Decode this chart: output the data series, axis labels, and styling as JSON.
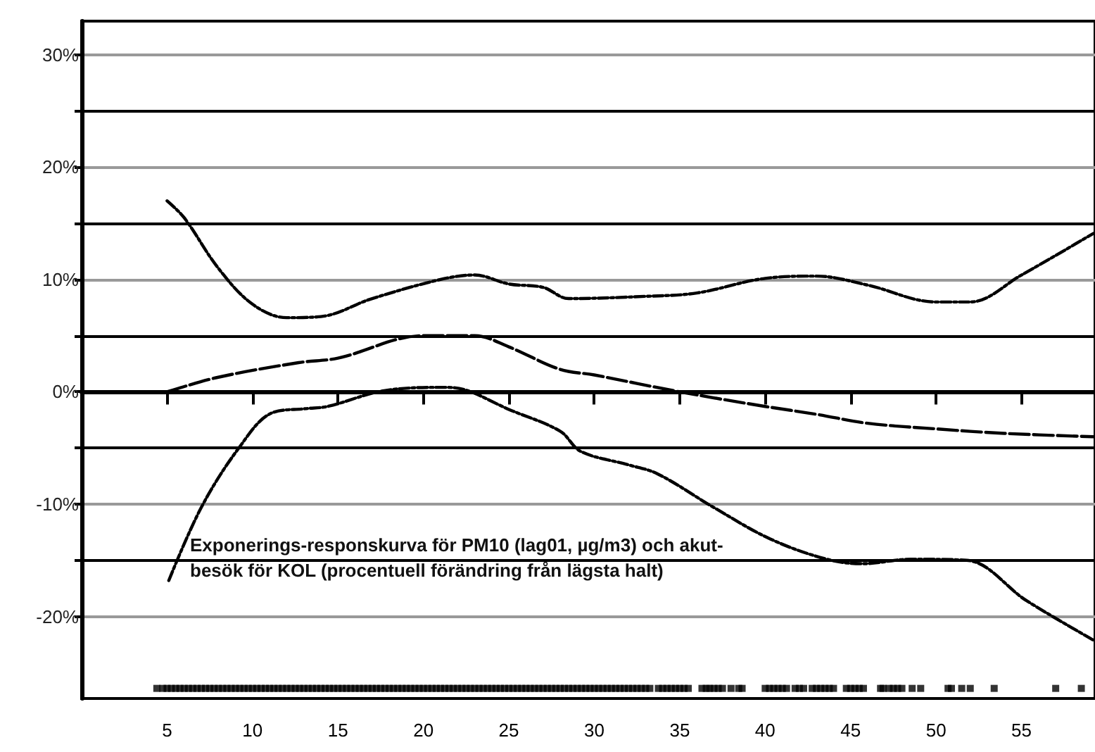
{
  "chart_data": {
    "type": "line",
    "annotations": [
      "Exponerings-responskurva för PM10 (lag01, µg/m3) och akut-\nbesök för KOL (procentuell förändring från lägsta halt)"
    ],
    "xlim": [
      0,
      59.3
    ],
    "xticks": [
      5,
      10,
      15,
      20,
      25,
      30,
      35,
      40,
      45,
      50,
      55
    ],
    "ylim": [
      -27.3,
      33
    ],
    "yticks": [
      {
        "value": -20,
        "label": "-20%"
      },
      {
        "value": -15,
        "label": null
      },
      {
        "value": -10,
        "label": "-10%"
      },
      {
        "value": -5,
        "label": null
      },
      {
        "value": 0,
        "label": "0%"
      },
      {
        "value": 5,
        "label": null
      },
      {
        "value": 10,
        "label": "10%"
      },
      {
        "value": 15,
        "label": null
      },
      {
        "value": 20,
        "label": "20%"
      },
      {
        "value": 25,
        "label": null
      },
      {
        "value": 30,
        "label": "30%"
      }
    ],
    "grid": "y",
    "marker": "none",
    "series": [
      {
        "color": "#000000",
        "line_style": "dashed",
        "x": [
          5,
          8,
          12.7,
          15,
          20,
          23,
          25,
          28,
          30,
          35,
          40,
          43,
          46,
          50,
          54,
          59.2
        ],
        "values": [
          0,
          1.3,
          2.6,
          3,
          5,
          5,
          4,
          2,
          1.5,
          0,
          -1.3,
          -2,
          -2.8,
          -3.3,
          -3.7,
          -4
        ]
      },
      {
        "color": "#000000",
        "line_style": "dotted",
        "x": [
          5,
          6,
          8,
          10,
          12,
          14,
          17,
          21,
          23,
          25,
          27,
          28.5,
          33,
          36,
          40,
          43,
          46,
          50,
          52,
          55,
          59.2
        ],
        "values": [
          17,
          15.5,
          11,
          7.8,
          6.6,
          6.7,
          8.3,
          10,
          10.4,
          9.6,
          9.3,
          8.3,
          8.5,
          8.8,
          10.1,
          10.3,
          9.5,
          8,
          8,
          10.4,
          14.1
        ]
      },
      {
        "color": "#000000",
        "line_style": "dotted",
        "x": [
          5.1,
          7,
          9.2,
          11.1,
          13.1,
          14.4,
          17.7,
          21.3,
          22.6,
          24.9,
          28,
          29.2,
          32,
          33.7,
          37,
          40.3,
          43.6,
          45.7,
          48.5,
          51.8,
          55.3,
          59.2
        ],
        "values": [
          -16.8,
          -10.3,
          -5,
          -1.9,
          -1.5,
          -1.3,
          0.1,
          0.4,
          0.1,
          -1.5,
          -3.5,
          -5.3,
          -6.5,
          -7.3,
          -10.3,
          -13.1,
          -14.9,
          -15.3,
          -14.9,
          -15,
          -18.6,
          -22.1
        ]
      },
      {
        "type": "scatter",
        "marker": "square",
        "color": "#000000",
        "x": [
          4.4,
          4.75,
          5,
          5.25,
          5.5,
          5.75,
          6,
          6.25,
          6.5,
          6.75,
          7,
          7.25,
          7.5,
          7.75,
          8,
          8.25,
          8.5,
          8.75,
          9,
          9.25,
          9.5,
          9.75,
          10,
          10.25,
          10.5,
          10.75,
          11,
          11.25,
          11.5,
          11.75,
          12,
          12.25,
          12.5,
          12.75,
          13,
          13.25,
          13.5,
          13.75,
          14,
          14.25,
          14.5,
          14.75,
          15,
          15.25,
          15.5,
          15.75,
          16,
          16.25,
          16.5,
          16.75,
          17,
          17.25,
          17.5,
          17.75,
          18,
          18.25,
          18.5,
          18.75,
          19,
          19.25,
          19.5,
          19.75,
          20,
          20.25,
          20.5,
          20.75,
          21,
          21.25,
          21.5,
          21.75,
          22,
          22.25,
          22.5,
          22.75,
          23,
          23.25,
          23.5,
          23.75,
          24,
          24.25,
          24.5,
          24.75,
          25,
          25.25,
          25.5,
          25.75,
          26,
          26.25,
          26.5,
          26.75,
          27,
          27.25,
          27.5,
          27.75,
          28,
          28.25,
          28.5,
          28.75,
          29,
          29.25,
          29.5,
          29.75,
          30,
          30.25,
          30.5,
          30.75,
          31,
          31.25,
          31.5,
          31.75,
          32,
          32.25,
          32.5,
          32.75,
          33,
          33.25,
          33.75,
          34,
          34.25,
          34.5,
          34.75,
          35,
          35.25,
          35.5,
          36.3,
          36.55,
          36.75,
          37,
          37.25,
          37.5,
          38,
          38.45,
          38.65,
          40,
          40.25,
          40.5,
          40.75,
          41,
          41.25,
          41.75,
          42,
          42.25,
          42.75,
          43,
          43.25,
          43.5,
          43.75,
          44,
          44.75,
          45,
          45.25,
          45.5,
          45.75,
          46.75,
          46.9,
          47.25,
          47.5,
          47.75,
          48,
          48.6,
          49.1,
          50.7,
          50.9,
          51.5,
          52,
          53.4,
          57,
          58.5
        ],
        "values": [
          -26.4,
          -26.4,
          -26.4,
          -26.4,
          -26.4,
          -26.4,
          -26.4,
          -26.4,
          -26.4,
          -26.4,
          -26.4,
          -26.4,
          -26.4,
          -26.4,
          -26.4,
          -26.4,
          -26.4,
          -26.4,
          -26.4,
          -26.4,
          -26.4,
          -26.4,
          -26.4,
          -26.4,
          -26.4,
          -26.4,
          -26.4,
          -26.4,
          -26.4,
          -26.4,
          -26.4,
          -26.4,
          -26.4,
          -26.4,
          -26.4,
          -26.4,
          -26.4,
          -26.4,
          -26.4,
          -26.4,
          -26.4,
          -26.4,
          -26.4,
          -26.4,
          -26.4,
          -26.4,
          -26.4,
          -26.4,
          -26.4,
          -26.4,
          -26.4,
          -26.4,
          -26.4,
          -26.4,
          -26.4,
          -26.4,
          -26.4,
          -26.4,
          -26.4,
          -26.4,
          -26.4,
          -26.4,
          -26.4,
          -26.4,
          -26.4,
          -26.4,
          -26.4,
          -26.4,
          -26.4,
          -26.4,
          -26.4,
          -26.4,
          -26.4,
          -26.4,
          -26.4,
          -26.4,
          -26.4,
          -26.4,
          -26.4,
          -26.4,
          -26.4,
          -26.4,
          -26.4,
          -26.4,
          -26.4,
          -26.4,
          -26.4,
          -26.4,
          -26.4,
          -26.4,
          -26.4,
          -26.4,
          -26.4,
          -26.4,
          -26.4,
          -26.4,
          -26.4,
          -26.4,
          -26.4,
          -26.4,
          -26.4,
          -26.4,
          -26.4,
          -26.4,
          -26.4,
          -26.4,
          -26.4,
          -26.4,
          -26.4,
          -26.4,
          -26.4,
          -26.4,
          -26.4,
          -26.4,
          -26.4,
          -26.4,
          -26.4,
          -26.4,
          -26.4,
          -26.4,
          -26.4,
          -26.4,
          -26.4,
          -26.4,
          -26.4,
          -26.4,
          -26.4,
          -26.4,
          -26.4,
          -26.4,
          -26.4,
          -26.4,
          -26.4,
          -26.4,
          -26.4,
          -26.4,
          -26.4,
          -26.4,
          -26.4,
          -26.4,
          -26.4,
          -26.4,
          -26.4,
          -26.4,
          -26.4,
          -26.4,
          -26.4,
          -26.4,
          -26.4,
          -26.4,
          -26.4,
          -26.4,
          -26.4,
          -26.4,
          -26.4,
          -26.4,
          -26.4,
          -26.4,
          -26.4,
          -26.4,
          -26.4,
          -26.4,
          -26.4,
          -26.4,
          -26.4,
          -26.4,
          -26.4,
          -26.4
        ]
      }
    ]
  }
}
